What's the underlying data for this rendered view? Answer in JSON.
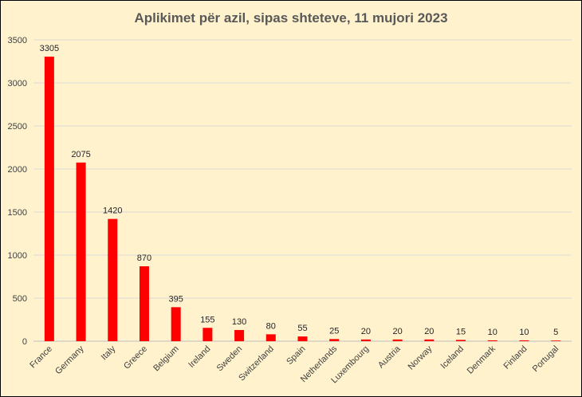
{
  "chart_data": {
    "type": "bar",
    "title": "Aplikimet për azil, sipas shteteve, 11 mujori 2023",
    "xlabel": "",
    "ylabel": "",
    "categories": [
      "France",
      "Germany",
      "Italy",
      "Greece",
      "Belgium",
      "Ireland",
      "Sweden",
      "Switzerland",
      "Spain",
      "Netherlands",
      "Luxembourg",
      "Austria",
      "Norway",
      "Iceland",
      "Denmark",
      "Finland",
      "Portugal"
    ],
    "values": [
      3305,
      2075,
      1420,
      870,
      395,
      155,
      130,
      80,
      55,
      25,
      20,
      20,
      20,
      15,
      10,
      10,
      5
    ],
    "ylim": [
      0,
      3500
    ],
    "yticks": [
      0,
      500,
      1000,
      1500,
      2000,
      2500,
      3000,
      3500
    ],
    "grid": true,
    "legend": "none",
    "data_labels": true,
    "colors": {
      "bar": "#ff0000",
      "background": "#fff2cc",
      "border": "#000000",
      "grid": "#d9d9d9"
    }
  }
}
